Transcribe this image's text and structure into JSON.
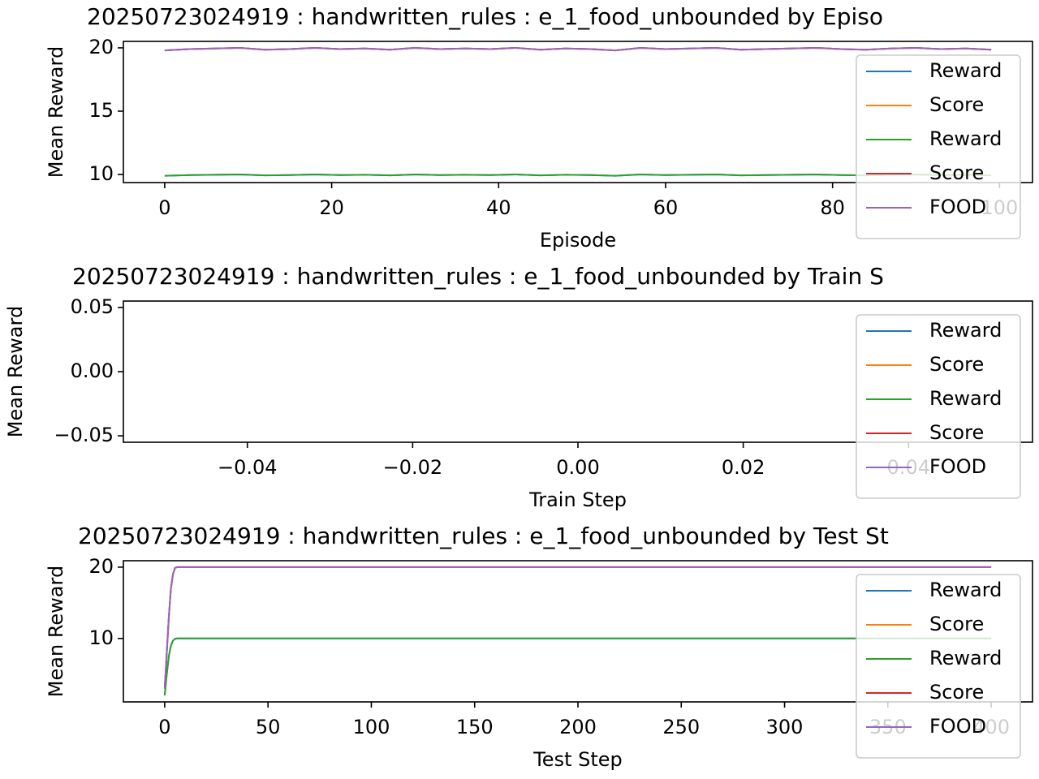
{
  "chart_data": [
    {
      "type": "line",
      "title": "20250723024919 : handwritten_rules : e_1_food_unbounded by Episo",
      "x_label": "Episode",
      "y_label": "Mean Reward",
      "x": [
        0,
        3,
        6,
        9,
        12,
        15,
        18,
        21,
        24,
        27,
        30,
        33,
        36,
        39,
        42,
        45,
        48,
        51,
        54,
        57,
        60,
        63,
        66,
        69,
        72,
        75,
        78,
        81,
        84,
        87,
        90,
        93,
        96,
        99
      ],
      "series": [
        {
          "name": "Reward",
          "color": "#1f77b4",
          "values": [
            9.9,
            9.95,
            9.98,
            10.0,
            9.93,
            9.95,
            10.0,
            9.95,
            9.98,
            9.93,
            10.0,
            9.95,
            9.98,
            9.95,
            10.0,
            9.93,
            9.98,
            9.95,
            9.9,
            10.0,
            9.95,
            9.98,
            10.0,
            9.93,
            9.95,
            9.98,
            10.0,
            9.95,
            9.93,
            9.98,
            10.0,
            9.95,
            9.98,
            9.93
          ]
        },
        {
          "name": "Score",
          "color": "#ff7f0e",
          "values": [
            19.8,
            19.9,
            19.95,
            20.0,
            19.85,
            19.9,
            20.0,
            19.9,
            19.95,
            19.85,
            20.0,
            19.9,
            19.95,
            19.9,
            20.0,
            19.85,
            19.95,
            19.9,
            19.8,
            20.0,
            19.9,
            19.95,
            20.0,
            19.85,
            19.9,
            19.95,
            20.0,
            19.9,
            19.85,
            19.95,
            20.0,
            19.9,
            19.95,
            19.85
          ]
        },
        {
          "name": "Reward",
          "color": "#2ca02c",
          "values": [
            9.9,
            9.95,
            9.98,
            10.0,
            9.93,
            9.95,
            10.0,
            9.95,
            9.98,
            9.93,
            10.0,
            9.95,
            9.98,
            9.95,
            10.0,
            9.93,
            9.98,
            9.95,
            9.9,
            10.0,
            9.95,
            9.98,
            10.0,
            9.93,
            9.95,
            9.98,
            10.0,
            9.95,
            9.93,
            9.98,
            10.0,
            9.95,
            9.98,
            9.93
          ]
        },
        {
          "name": "Score",
          "color": "#d62728",
          "values": [
            19.8,
            19.9,
            19.95,
            20.0,
            19.85,
            19.9,
            20.0,
            19.9,
            19.95,
            19.85,
            20.0,
            19.9,
            19.95,
            19.9,
            20.0,
            19.85,
            19.95,
            19.9,
            19.8,
            20.0,
            19.9,
            19.95,
            20.0,
            19.85,
            19.9,
            19.95,
            20.0,
            19.9,
            19.85,
            19.95,
            20.0,
            19.9,
            19.95,
            19.85
          ]
        },
        {
          "name": "FOOD",
          "color": "#9467bd",
          "values": [
            19.8,
            19.9,
            19.95,
            20.0,
            19.85,
            19.9,
            20.0,
            19.9,
            19.95,
            19.85,
            20.0,
            19.9,
            19.95,
            19.9,
            20.0,
            19.85,
            19.95,
            19.9,
            19.8,
            20.0,
            19.9,
            19.95,
            20.0,
            19.85,
            19.9,
            19.95,
            20.0,
            19.9,
            19.85,
            19.95,
            20.0,
            19.9,
            19.95,
            19.85
          ]
        }
      ],
      "xlim": [
        -4.95,
        103.95
      ],
      "xticks": [
        0,
        20,
        40,
        60,
        80,
        100
      ],
      "ylim": [
        9.36,
        20.51
      ],
      "yticks": [
        10,
        15,
        20
      ],
      "grid": false,
      "legend": "upper right"
    },
    {
      "type": "line",
      "title": "20250723024919 : handwritten_rules : e_1_food_unbounded by Train S",
      "x_label": "Train Step",
      "y_label": "Mean Reward",
      "x": [],
      "series": [
        {
          "name": "Reward",
          "color": "#1f77b4",
          "values": []
        },
        {
          "name": "Score",
          "color": "#ff7f0e",
          "values": []
        },
        {
          "name": "Reward",
          "color": "#2ca02c",
          "values": []
        },
        {
          "name": "Score",
          "color": "#d62728",
          "values": []
        },
        {
          "name": "FOOD",
          "color": "#9467bd",
          "values": []
        }
      ],
      "xlim": [
        -0.055,
        0.055
      ],
      "xticks": [
        {
          "value": -0.04,
          "label": "−0.04"
        },
        {
          "value": -0.02,
          "label": "−0.02"
        },
        {
          "value": 0,
          "label": "0.00"
        },
        0.02,
        0.04
      ],
      "ylim": [
        -0.055,
        0.055
      ],
      "yticks": [
        {
          "value": -0.05,
          "label": "−0.05"
        },
        {
          "value": 0,
          "label": "0.00"
        },
        0.05
      ],
      "grid": false,
      "legend": "upper right"
    },
    {
      "type": "line",
      "title": "20250723024919 : handwritten_rules : e_1_food_unbounded by Test St",
      "x_label": "Test Step",
      "y_label": "Mean Reward",
      "x": [
        0,
        1,
        2,
        3,
        4,
        5,
        6,
        50,
        100,
        150,
        200,
        250,
        300,
        350,
        400
      ],
      "series": [
        {
          "name": "Reward",
          "color": "#1f77b4",
          "values": [
            2,
            5,
            7.5,
            9,
            9.7,
            9.95,
            10,
            10,
            10,
            10,
            10,
            10,
            10,
            10,
            10
          ]
        },
        {
          "name": "Score",
          "color": "#ff7f0e",
          "values": [
            3,
            8,
            13,
            17,
            19,
            19.9,
            20,
            20,
            20,
            20,
            20,
            20,
            20,
            20,
            20
          ]
        },
        {
          "name": "Reward",
          "color": "#2ca02c",
          "values": [
            2,
            5,
            7.5,
            9,
            9.7,
            9.95,
            10,
            10,
            10,
            10,
            10,
            10,
            10,
            10,
            10
          ]
        },
        {
          "name": "Score",
          "color": "#d62728",
          "values": [
            3,
            8,
            13,
            17,
            19,
            19.9,
            20,
            20,
            20,
            20,
            20,
            20,
            20,
            20,
            20
          ]
        },
        {
          "name": "FOOD",
          "color": "#9467bd",
          "values": [
            3,
            8,
            13,
            17,
            19,
            19.9,
            20,
            20,
            20,
            20,
            20,
            20,
            20,
            20,
            20
          ]
        }
      ],
      "xlim": [
        -20,
        420
      ],
      "xticks": [
        0,
        50,
        100,
        150,
        200,
        250,
        300,
        350,
        400
      ],
      "ylim": [
        1.1,
        20.9
      ],
      "yticks": [
        10,
        20
      ],
      "grid": false,
      "legend": "upper right"
    }
  ]
}
